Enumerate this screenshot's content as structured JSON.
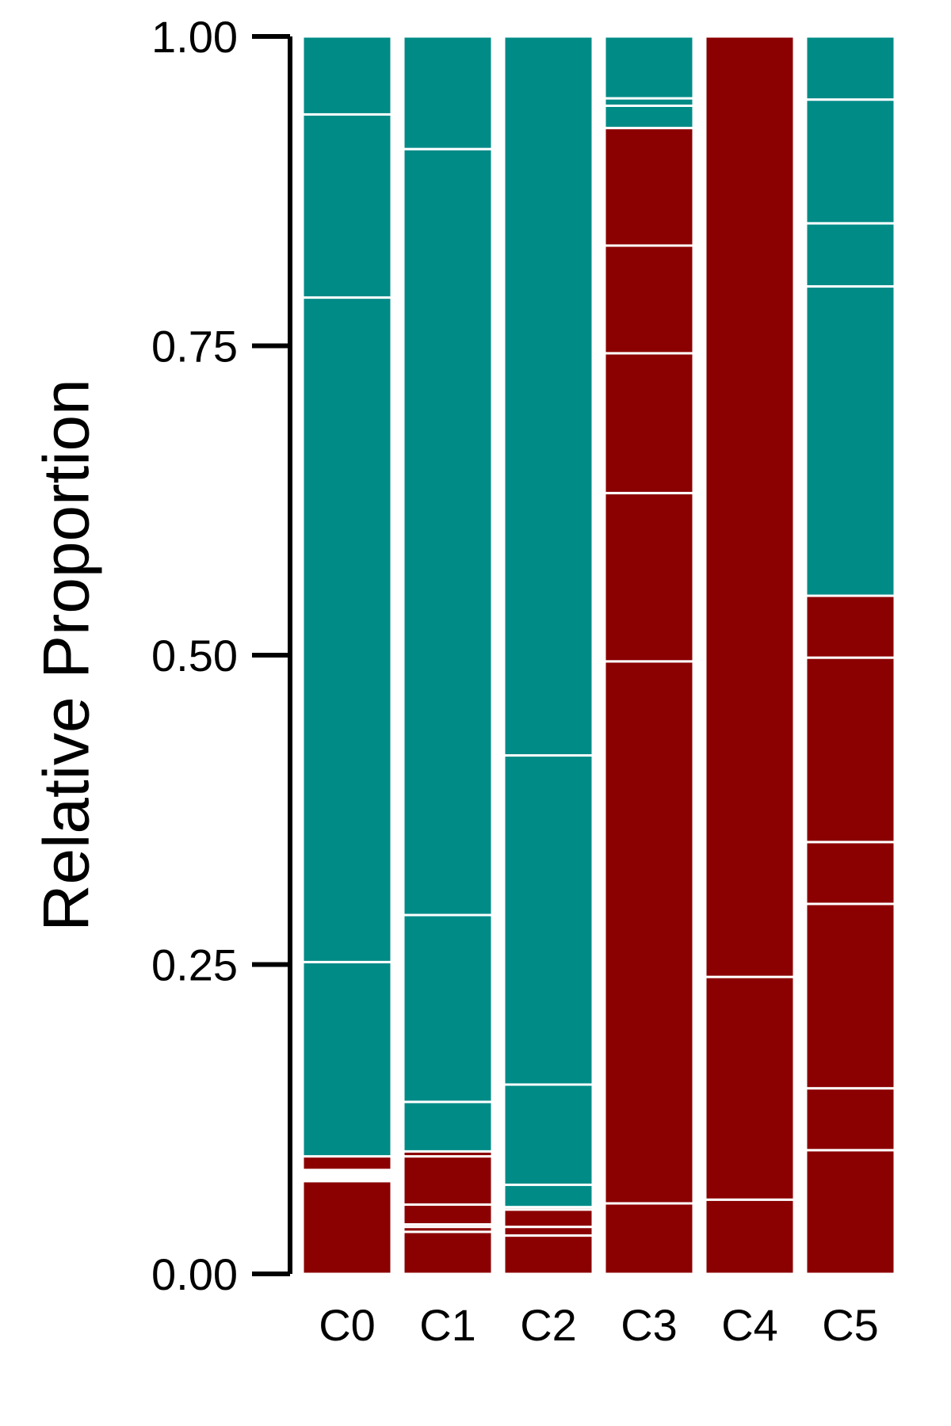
{
  "chart_data": {
    "type": "bar",
    "stacked": true,
    "categories": [
      "C0",
      "C1",
      "C2",
      "C3",
      "C4",
      "C5"
    ],
    "ylabel": "Relative Proportion",
    "xlabel": "",
    "ylim": [
      0,
      1
    ],
    "yticks": [
      "0.00",
      "0.25",
      "0.50",
      "0.75",
      "1.00"
    ],
    "grid": false,
    "legend": "none",
    "colors": {
      "teal": "#008b87",
      "darkred": "#8b0000",
      "separator": "#ffffff",
      "axis": "#000000"
    },
    "segments": [
      [
        {
          "value": 0.075,
          "color": "darkred"
        },
        {
          "value": 0.009,
          "color": "white"
        },
        {
          "value": 0.011,
          "color": "darkred"
        },
        {
          "value": 0.157,
          "color": "teal"
        },
        {
          "value": 0.537,
          "color": "teal"
        },
        {
          "value": 0.148,
          "color": "teal"
        },
        {
          "value": 0.063,
          "color": "teal"
        }
      ],
      [
        {
          "value": 0.034,
          "color": "darkred"
        },
        {
          "value": 0.004,
          "color": "darkred"
        },
        {
          "value": 0.002,
          "color": "darkred"
        },
        {
          "value": 0.016,
          "color": "darkred"
        },
        {
          "value": 0.039,
          "color": "darkred"
        },
        {
          "value": 0.004,
          "color": "darkred"
        },
        {
          "value": 0.04,
          "color": "teal"
        },
        {
          "value": 0.151,
          "color": "teal"
        },
        {
          "value": 0.619,
          "color": "teal"
        },
        {
          "value": 0.091,
          "color": "teal"
        }
      ],
      [
        {
          "value": 0.031,
          "color": "darkred"
        },
        {
          "value": 0.007,
          "color": "darkred"
        },
        {
          "value": 0.014,
          "color": "darkred"
        },
        {
          "value": 0.002,
          "color": "darkred"
        },
        {
          "value": 0.018,
          "color": "teal"
        },
        {
          "value": 0.081,
          "color": "teal"
        },
        {
          "value": 0.266,
          "color": "teal"
        },
        {
          "value": 0.581,
          "color": "teal"
        }
      ],
      [
        {
          "value": 0.057,
          "color": "darkred"
        },
        {
          "value": 0.438,
          "color": "darkred"
        },
        {
          "value": 0.136,
          "color": "darkred"
        },
        {
          "value": 0.113,
          "color": "darkred"
        },
        {
          "value": 0.087,
          "color": "darkred"
        },
        {
          "value": 0.095,
          "color": "darkred"
        },
        {
          "value": 0.018,
          "color": "teal"
        },
        {
          "value": 0.006,
          "color": "teal"
        },
        {
          "value": 0.05,
          "color": "teal"
        }
      ],
      [
        {
          "value": 0.06,
          "color": "darkred"
        },
        {
          "value": 0.18,
          "color": "darkred"
        },
        {
          "value": 0.76,
          "color": "darkred"
        }
      ],
      [
        {
          "value": 0.1,
          "color": "darkred"
        },
        {
          "value": 0.05,
          "color": "darkred"
        },
        {
          "value": 0.149,
          "color": "darkred"
        },
        {
          "value": 0.05,
          "color": "darkred"
        },
        {
          "value": 0.149,
          "color": "darkred"
        },
        {
          "value": 0.05,
          "color": "darkred"
        },
        {
          "value": 0.25,
          "color": "teal"
        },
        {
          "value": 0.051,
          "color": "teal"
        },
        {
          "value": 0.1,
          "color": "teal"
        },
        {
          "value": 0.051,
          "color": "teal"
        }
      ]
    ]
  }
}
